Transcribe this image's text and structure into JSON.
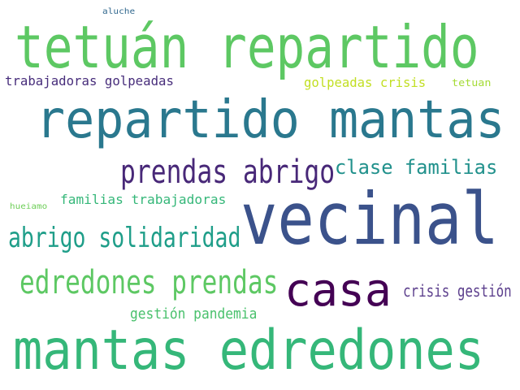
{
  "words": [
    {
      "text": "tetuán repartido",
      "color": "#5dc863"
    },
    {
      "text": "repartido mantas",
      "color": "#2a788e"
    },
    {
      "text": "vecinal",
      "color": "#3b528b"
    },
    {
      "text": "mantas edredones",
      "color": "#35b779"
    },
    {
      "text": "casa",
      "color": "#440154"
    },
    {
      "text": "prendas abrigo",
      "color": "#482878"
    },
    {
      "text": "clase familias",
      "color": "#21918c"
    },
    {
      "text": "abrigo solidaridad",
      "color": "#1f9e89"
    },
    {
      "text": "edredones prendas",
      "color": "#5dc863"
    },
    {
      "text": "trabajadoras golpeadas",
      "color": "#472d7b"
    },
    {
      "text": "golpeadas crisis",
      "color": "#c2df23"
    },
    {
      "text": "familias trabajadoras",
      "color": "#35b779"
    },
    {
      "text": "crisis gestión",
      "color": "#5c3f8d"
    },
    {
      "text": "gestión pandemia",
      "color": "#4ac16d"
    },
    {
      "text": "tetuan",
      "color": "#a5db36"
    },
    {
      "text": "aluche",
      "color": "#31688e"
    },
    {
      "text": "hueiamo",
      "color": "#6ece58"
    }
  ]
}
